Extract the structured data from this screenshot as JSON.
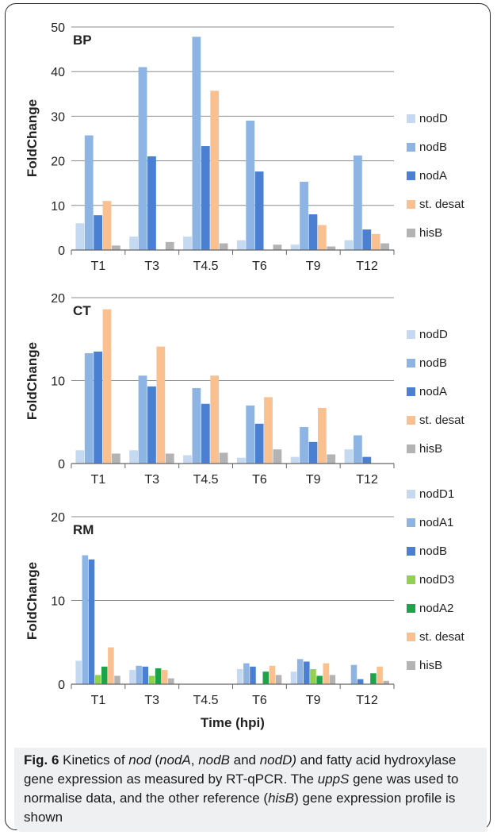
{
  "chart_data": [
    {
      "type": "bar",
      "title": "BP",
      "ylabel": "FoldChange",
      "ylim": [
        0,
        50
      ],
      "yticks": [
        0,
        10,
        20,
        30,
        40,
        50
      ],
      "categories": [
        "T1",
        "T3",
        "T4.5",
        "T6",
        "T9",
        "T12"
      ],
      "legend": "right",
      "grid": true,
      "series": [
        {
          "name": "nodD",
          "color": "#c5d9f1",
          "values": [
            6,
            3,
            3,
            2.2,
            1.2,
            2.2
          ]
        },
        {
          "name": "nodB",
          "color": "#8eb4e3",
          "values": [
            25.7,
            41,
            47.8,
            29,
            15.3,
            21.2
          ]
        },
        {
          "name": "nodA",
          "color": "#4a7fd2",
          "values": [
            7.8,
            21,
            23.3,
            17.6,
            8,
            4.6
          ]
        },
        {
          "name": "st. desat",
          "color": "#fac090",
          "values": [
            11,
            0,
            35.7,
            0,
            5.6,
            3.6
          ]
        },
        {
          "name": "hisB",
          "color": "#b3b3b3",
          "values": [
            1,
            1.8,
            1.5,
            1.2,
            0.8,
            1.5
          ]
        }
      ]
    },
    {
      "type": "bar",
      "title": "CT",
      "ylabel": "FoldChange",
      "ylim": [
        0,
        20
      ],
      "yticks": [
        0,
        10,
        20
      ],
      "categories": [
        "T1",
        "T3",
        "T4.5",
        "T6",
        "T9",
        "T12"
      ],
      "legend": "right",
      "grid": true,
      "series": [
        {
          "name": "nodD",
          "color": "#c5d9f1",
          "values": [
            1.6,
            1.6,
            1,
            0.7,
            0.8,
            1.7
          ]
        },
        {
          "name": "nodB",
          "color": "#8eb4e3",
          "values": [
            13.3,
            10.6,
            9.1,
            7,
            4.4,
            3.4
          ]
        },
        {
          "name": "nodA",
          "color": "#4a7fd2",
          "values": [
            13.5,
            9.3,
            7.2,
            4.8,
            2.6,
            0.8
          ]
        },
        {
          "name": "st. desat",
          "color": "#fac090",
          "values": [
            18.6,
            14.1,
            10.6,
            8,
            6.7,
            0
          ]
        },
        {
          "name": "hisB",
          "color": "#b3b3b3",
          "values": [
            1.2,
            1.2,
            1.3,
            1.7,
            1.1,
            0
          ]
        }
      ]
    },
    {
      "type": "bar",
      "title": "RM",
      "ylabel": "FoldChange",
      "xlabel": "Time (hpi)",
      "ylim": [
        0,
        20
      ],
      "yticks": [
        0,
        10,
        20
      ],
      "categories": [
        "T1",
        "T3",
        "T4.5",
        "T6",
        "T9",
        "T12"
      ],
      "legend": "right",
      "grid": true,
      "series": [
        {
          "name": "nodD1",
          "color": "#c5d9f1",
          "values": [
            2.8,
            1.7,
            0,
            1.8,
            1.5,
            0
          ]
        },
        {
          "name": "nodA1",
          "color": "#8eb4e3",
          "values": [
            15.4,
            2.2,
            0,
            2.5,
            3,
            2.3
          ]
        },
        {
          "name": "nodB",
          "color": "#4a7fd2",
          "values": [
            14.9,
            2.1,
            0,
            2.1,
            2.7,
            0.6
          ]
        },
        {
          "name": "nodD3",
          "color": "#92d050",
          "values": [
            1.1,
            1,
            0,
            0,
            1.8,
            0
          ]
        },
        {
          "name": "nodA2",
          "color": "#1ea34a",
          "values": [
            2.1,
            1.9,
            0,
            1.5,
            1,
            1.3
          ]
        },
        {
          "name": "st. desat",
          "color": "#fac090",
          "values": [
            4.4,
            1.7,
            0,
            2.2,
            2.5,
            2.1
          ]
        },
        {
          "name": "hisB",
          "color": "#b3b3b3",
          "values": [
            1,
            0.7,
            0,
            1.1,
            1.1,
            0.4
          ]
        }
      ]
    }
  ],
  "caption": {
    "fig_label": "Fig. 6",
    "t1": " Kinetics of ",
    "i1": "nod",
    "t2": " (",
    "i2": "nodA",
    "t3": ", ",
    "i3": "nodB",
    "t4": " and ",
    "i4": "nodD)",
    "t5": " and fatty acid hydroxylase gene expression as measured by RT-qPCR. The ",
    "i5": "uppS",
    "t6": " gene was used to normalise data, and the other reference (",
    "i6": "hisB",
    "t7": ") gene expression profile is shown"
  }
}
